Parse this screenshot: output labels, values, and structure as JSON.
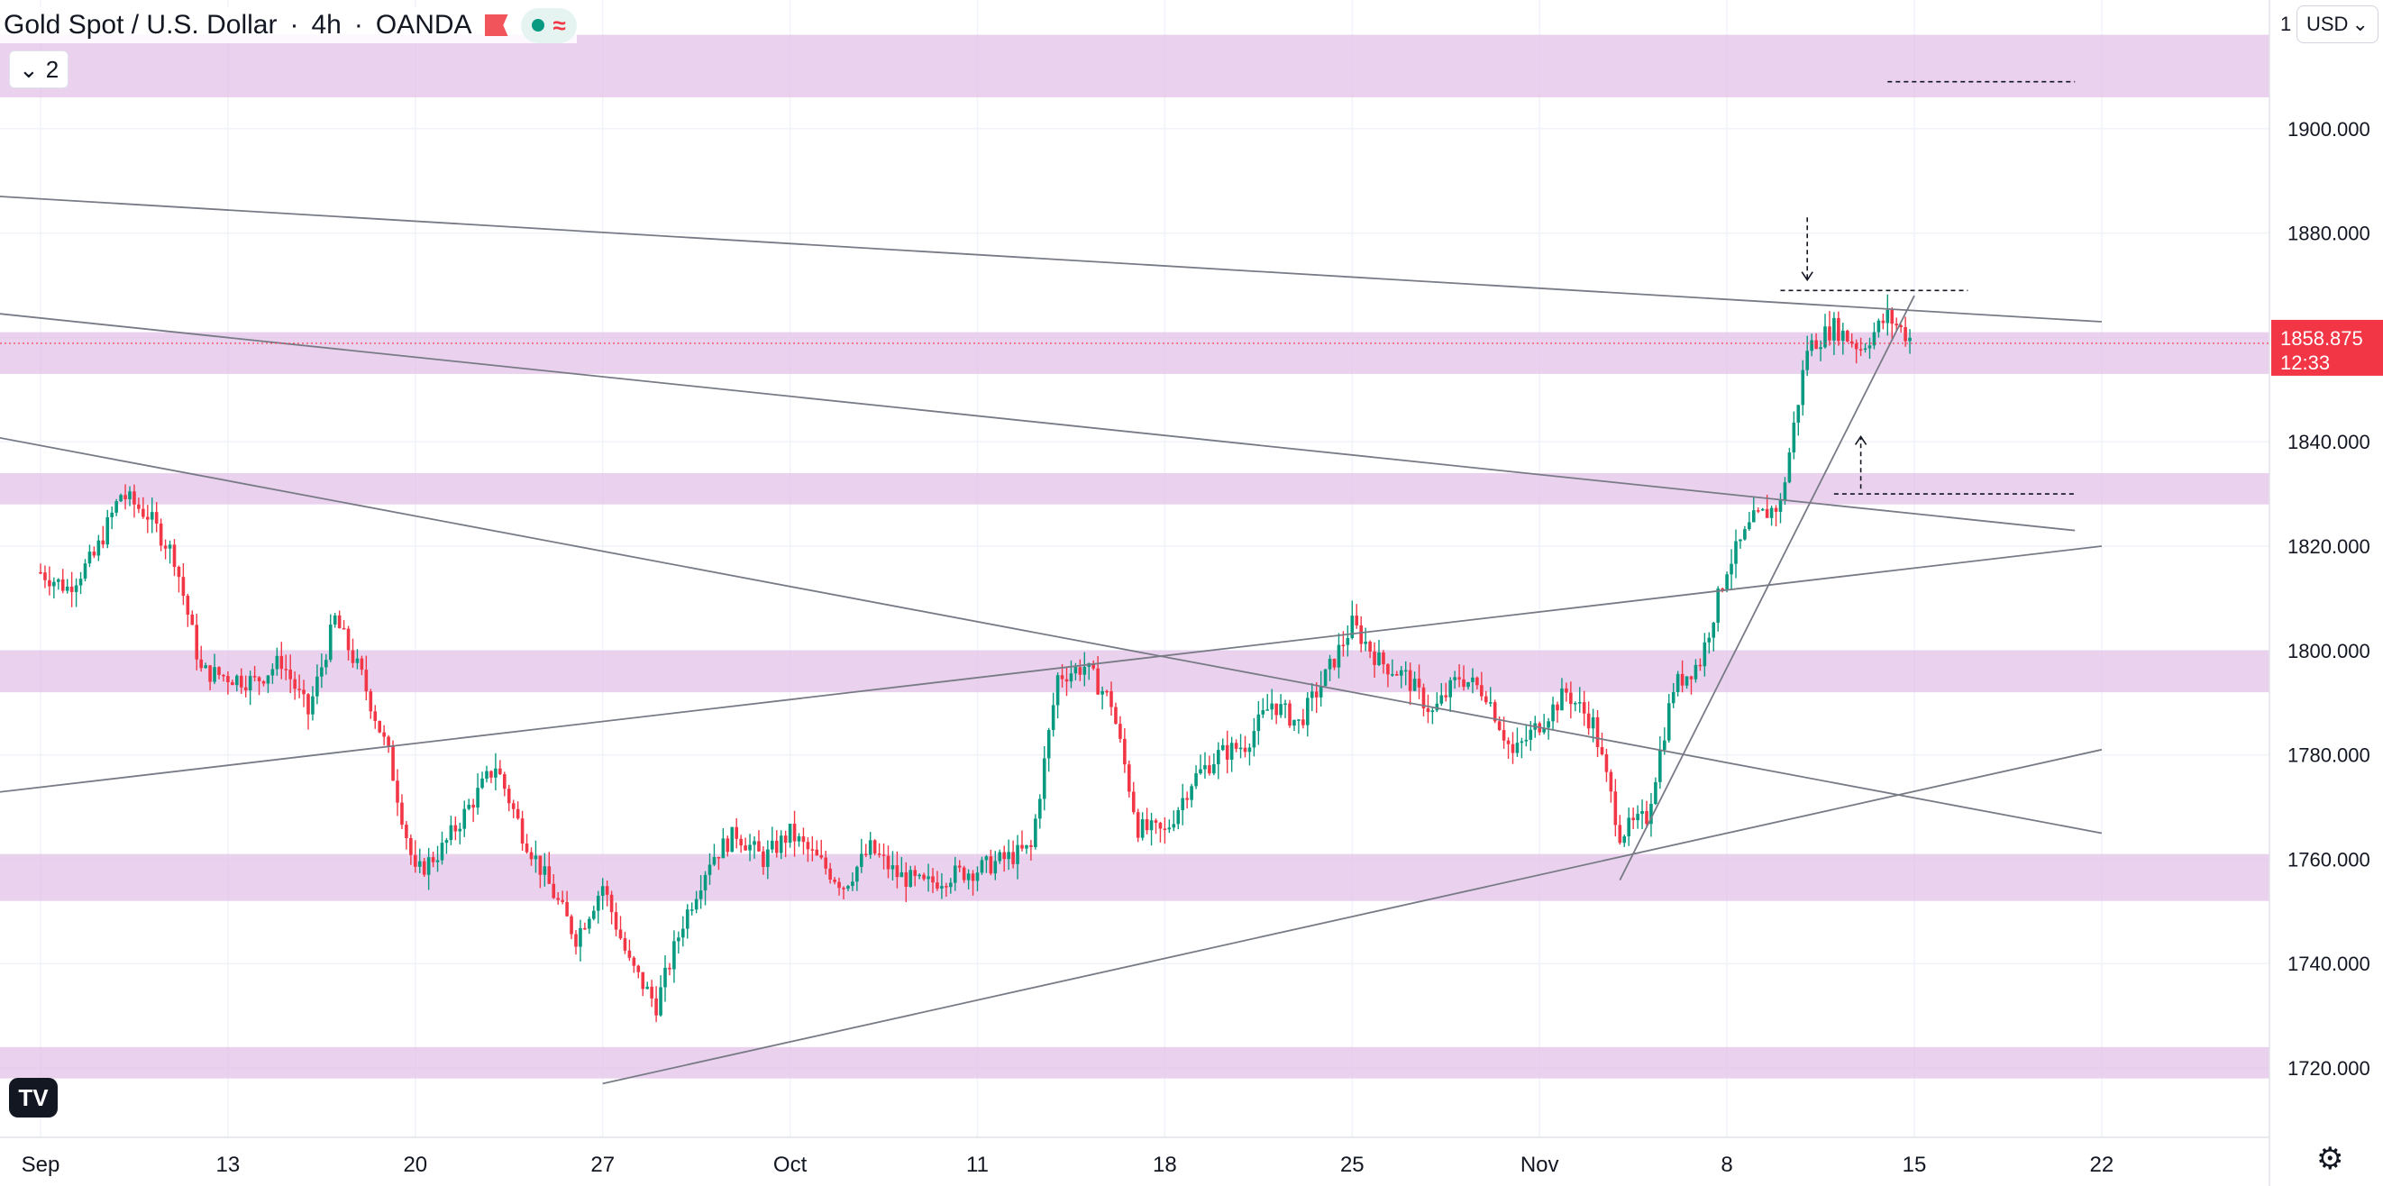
{
  "header": {
    "symbol": "Gold Spot / U.S. Dollar",
    "separator": "·",
    "interval": "4h",
    "exchange": "OANDA",
    "status_icon": "market-closed-flag",
    "indicator_count": "2"
  },
  "currency_selector": "USD",
  "price_axis_top_partial": "1",
  "colors": {
    "up": "#089981",
    "down": "#f23645",
    "zone": "#e1bee7",
    "trendline": "#787b86",
    "price_label_bg": "#f23645"
  },
  "chart_data": {
    "type": "candlestick",
    "title": "Gold Spot / U.S. Dollar · 4h · OANDA",
    "ylim": [
      1712,
      1926
    ],
    "price_ticks": [
      "1720.000",
      "1740.000",
      "1760.000",
      "1780.000",
      "1800.000",
      "1820.000",
      "1840.000",
      "1860.000",
      "1880.000",
      "1900.000"
    ],
    "date_ticks": [
      "Sep",
      "13",
      "20",
      "27",
      "Oct",
      "11",
      "18",
      "25",
      "Nov",
      "8",
      "15",
      "22"
    ],
    "date_axis_start": "2021-09-06",
    "last_price": "1858.875",
    "countdown": "12:33",
    "path": [
      [
        "2021-09-06",
        1815
      ],
      [
        "2021-09-07",
        1812
      ],
      [
        "2021-09-08",
        1818
      ],
      [
        "2021-09-09",
        1830
      ],
      [
        "2021-09-10",
        1826
      ],
      [
        "2021-09-11",
        1818
      ],
      [
        "2021-09-12",
        1796
      ],
      [
        "2021-09-14",
        1794
      ],
      [
        "2021-09-15",
        1798
      ],
      [
        "2021-09-16",
        1788
      ],
      [
        "2021-09-17",
        1806
      ],
      [
        "2021-09-18",
        1795
      ],
      [
        "2021-09-19",
        1780
      ],
      [
        "2021-09-20",
        1757
      ],
      [
        "2021-09-21",
        1762
      ],
      [
        "2021-09-22",
        1770
      ],
      [
        "2021-09-23",
        1778
      ],
      [
        "2021-09-24",
        1765
      ],
      [
        "2021-09-25",
        1755
      ],
      [
        "2021-09-26",
        1745
      ],
      [
        "2021-09-27",
        1755
      ],
      [
        "2021-09-28",
        1740
      ],
      [
        "2021-09-29",
        1732
      ],
      [
        "2021-09-30",
        1748
      ],
      [
        "2021-10-01",
        1760
      ],
      [
        "2021-10-02",
        1765
      ],
      [
        "2021-10-03",
        1760
      ],
      [
        "2021-10-04",
        1765
      ],
      [
        "2021-10-05",
        1760
      ],
      [
        "2021-10-06",
        1755
      ],
      [
        "2021-10-07",
        1762
      ],
      [
        "2021-10-08",
        1757
      ],
      [
        "2021-10-09",
        1755
      ],
      [
        "2021-10-10",
        1757
      ],
      [
        "2021-10-11",
        1758
      ],
      [
        "2021-10-12",
        1760
      ],
      [
        "2021-10-13",
        1762
      ],
      [
        "2021-10-14",
        1795
      ],
      [
        "2021-10-15",
        1797
      ],
      [
        "2021-10-16",
        1790
      ],
      [
        "2021-10-17",
        1766
      ],
      [
        "2021-10-18",
        1765
      ],
      [
        "2021-10-19",
        1775
      ],
      [
        "2021-10-20",
        1780
      ],
      [
        "2021-10-21",
        1782
      ],
      [
        "2021-10-22",
        1790
      ],
      [
        "2021-10-23",
        1786
      ],
      [
        "2021-10-24",
        1795
      ],
      [
        "2021-10-25",
        1805
      ],
      [
        "2021-10-26",
        1798
      ],
      [
        "2021-10-27",
        1795
      ],
      [
        "2021-10-28",
        1788
      ],
      [
        "2021-10-29",
        1795
      ],
      [
        "2021-10-30",
        1792
      ],
      [
        "2021-10-31",
        1780
      ],
      [
        "2021-11-01",
        1786
      ],
      [
        "2021-11-02",
        1792
      ],
      [
        "2021-11-03",
        1786
      ],
      [
        "2021-11-04",
        1765
      ],
      [
        "2021-11-05",
        1768
      ],
      [
        "2021-11-06",
        1793
      ],
      [
        "2021-11-07",
        1798
      ],
      [
        "2021-11-08",
        1816
      ],
      [
        "2021-11-09",
        1825
      ],
      [
        "2021-11-10",
        1828
      ],
      [
        "2021-11-11",
        1858
      ],
      [
        "2021-11-12",
        1862
      ],
      [
        "2021-11-13",
        1858
      ],
      [
        "2021-11-14",
        1864
      ],
      [
        "2021-11-15",
        1859
      ]
    ],
    "resistance_support_zones": [
      [
        1906,
        1918
      ],
      [
        1853,
        1861
      ],
      [
        1828,
        1834
      ],
      [
        1792,
        1800
      ],
      [
        1752,
        1761
      ],
      [
        1718,
        1724
      ]
    ],
    "trendlines": [
      {
        "from": [
          "2021-08-29",
          1889
        ],
        "to": [
          "2021-11-22",
          1863
        ]
      },
      {
        "from": [
          "2021-08-29",
          1868
        ],
        "to": [
          "2021-11-21",
          1823
        ]
      },
      {
        "from": [
          "2021-08-29",
          1847
        ],
        "to": [
          "2021-11-22",
          1765
        ]
      },
      {
        "from": [
          "2021-08-29",
          1769
        ],
        "to": [
          "2021-11-22",
          1820
        ]
      },
      {
        "from": [
          "2021-09-27",
          1717
        ],
        "to": [
          "2021-11-22",
          1781
        ]
      },
      {
        "from": [
          "2021-11-04",
          1756
        ],
        "to": [
          "2021-11-15",
          1868
        ]
      }
    ],
    "dashed_levels": [
      {
        "from": "2021-11-14",
        "to": "2021-11-21",
        "y": 1909
      },
      {
        "from": "2021-11-10",
        "to": "2021-11-17",
        "y": 1869
      },
      {
        "from": "2021-11-12",
        "to": "2021-11-21",
        "y": 1830
      }
    ],
    "arrows": [
      {
        "x": "2021-11-11",
        "from": 1883,
        "to": 1871,
        "direction": "down"
      },
      {
        "x": "2021-11-13",
        "from": 1831,
        "to": 1841,
        "direction": "up"
      }
    ]
  }
}
